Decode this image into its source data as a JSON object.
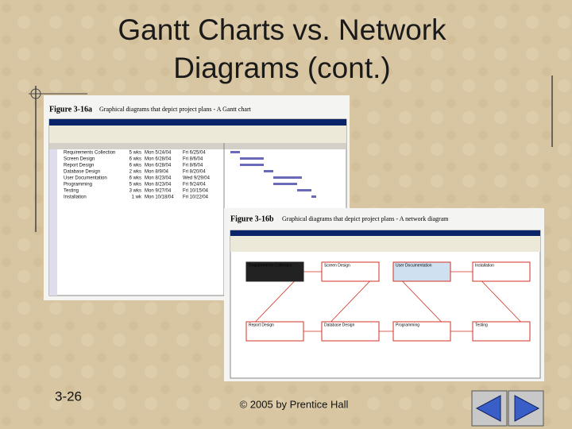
{
  "header": {
    "title_lines": [
      "Gantt Charts vs. Network",
      "Diagrams (cont.)"
    ]
  },
  "figures": [
    {
      "label": "Figure 3-16a",
      "caption": "Graphical diagrams that depict project plans - A Gantt chart",
      "tasks": [
        {
          "name": "Requirements Collection",
          "duration": "5 wks",
          "start": "Mon 5/24/04",
          "finish": "Fri 6/25/04"
        },
        {
          "name": "Screen Design",
          "duration": "6 wks",
          "start": "Mon 6/28/04",
          "finish": "Fri 8/6/04"
        },
        {
          "name": "Report Design",
          "duration": "6 wks",
          "start": "Mon 6/28/04",
          "finish": "Fri 8/6/04"
        },
        {
          "name": "Database Design",
          "duration": "2 wks",
          "start": "Mon 8/9/04",
          "finish": "Fri 8/20/04"
        },
        {
          "name": "User Documentation",
          "duration": "6 wks",
          "start": "Mon 8/23/04",
          "finish": "Wed 9/29/04"
        },
        {
          "name": "Programming",
          "duration": "5 wks",
          "start": "Mon 8/23/04",
          "finish": "Fri 9/24/04"
        },
        {
          "name": "Testing",
          "duration": "3 wks",
          "start": "Mon 9/27/04",
          "finish": "Fri 10/15/04"
        },
        {
          "name": "Installation",
          "duration": "1 wk",
          "start": "Mon 10/18/04",
          "finish": "Fri 10/22/04"
        }
      ]
    },
    {
      "label": "Figure 3-16b",
      "caption": "Graphical diagrams that depict project plans - A network diagram",
      "nodes": [
        {
          "label": "Requirements Collection"
        },
        {
          "label": "Screen Design"
        },
        {
          "label": "User Documentation"
        },
        {
          "label": "Installation"
        },
        {
          "label": "Report Design"
        },
        {
          "label": "Database Design"
        },
        {
          "label": "Programming"
        },
        {
          "label": "Testing"
        }
      ]
    }
  ],
  "footer": {
    "page": "3-26",
    "copyright": "© 2005 by Prentice Hall"
  }
}
